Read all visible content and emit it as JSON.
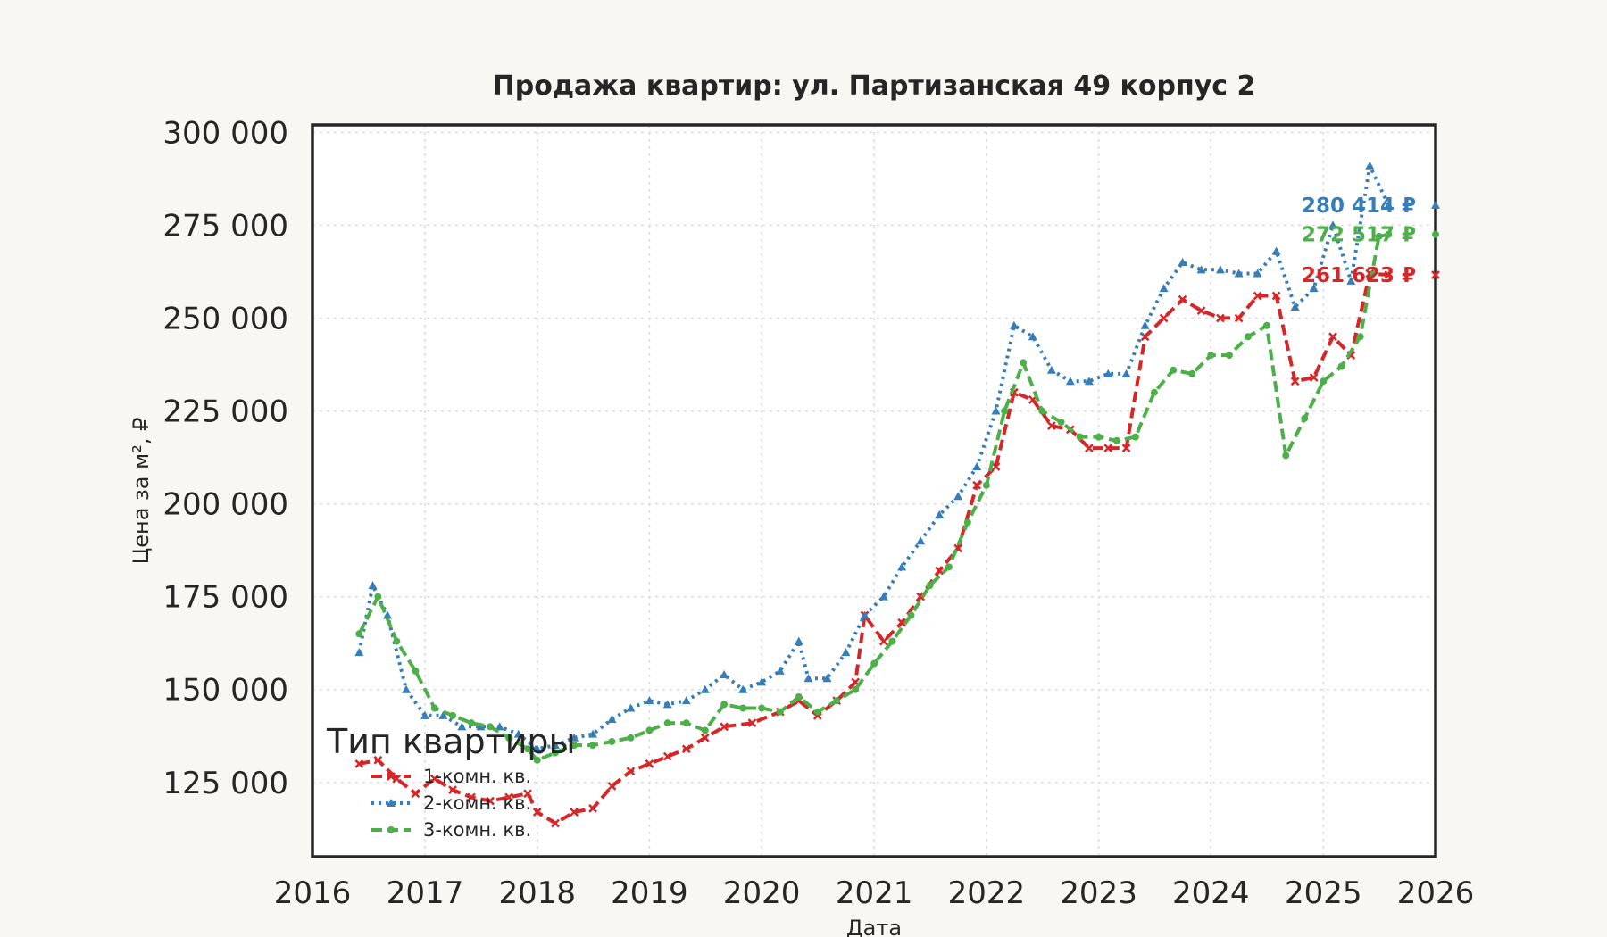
{
  "chart_data": {
    "type": "line",
    "title": "Продажа квартир: ул. Партизанская 49 корпус 2",
    "xlabel": "Дата",
    "ylabel": "Цена за м², ₽",
    "xlim": [
      "2016-01-01",
      "2026-01-01"
    ],
    "ylim": [
      105000,
      302000
    ],
    "x_ticks": [
      "2016",
      "2017",
      "2018",
      "2019",
      "2020",
      "2021",
      "2022",
      "2023",
      "2024",
      "2025",
      "2026"
    ],
    "y_ticks": [
      "125 000",
      "150 000",
      "175 000",
      "200 000",
      "225 000",
      "250 000",
      "275 000",
      "300 000"
    ],
    "y_tick_values": [
      125000,
      150000,
      175000,
      200000,
      225000,
      250000,
      275000,
      300000
    ],
    "grid": true,
    "legend": {
      "title": "Тип квартиры",
      "placement": "lower-left"
    },
    "series": [
      {
        "name": "1-комн. кв.",
        "color": "#d62728",
        "line_style": "dashed",
        "marker": "x",
        "end_label": "261 623 ₽",
        "end_value": 261623,
        "points": [
          [
            "2016-06-01",
            130000
          ],
          [
            "2016-08-01",
            131000
          ],
          [
            "2016-10-01",
            126000
          ],
          [
            "2016-12-01",
            122000
          ],
          [
            "2017-02-01",
            126000
          ],
          [
            "2017-04-01",
            123000
          ],
          [
            "2017-06-01",
            121000
          ],
          [
            "2017-08-01",
            120000
          ],
          [
            "2017-10-01",
            121000
          ],
          [
            "2017-12-01",
            122000
          ],
          [
            "2018-01-01",
            117000
          ],
          [
            "2018-03-01",
            114000
          ],
          [
            "2018-05-01",
            117000
          ],
          [
            "2018-07-01",
            118000
          ],
          [
            "2018-09-01",
            124000
          ],
          [
            "2018-11-01",
            128000
          ],
          [
            "2019-01-01",
            130000
          ],
          [
            "2019-03-01",
            132000
          ],
          [
            "2019-05-01",
            134000
          ],
          [
            "2019-07-01",
            137000
          ],
          [
            "2019-09-01",
            140000
          ],
          [
            "2019-12-01",
            141000
          ],
          [
            "2020-03-01",
            144000
          ],
          [
            "2020-05-01",
            147000
          ],
          [
            "2020-07-01",
            143000
          ],
          [
            "2020-09-01",
            147000
          ],
          [
            "2020-11-01",
            152000
          ],
          [
            "2020-12-01",
            170000
          ],
          [
            "2021-02-01",
            163000
          ],
          [
            "2021-04-01",
            168000
          ],
          [
            "2021-06-01",
            175000
          ],
          [
            "2021-08-01",
            182000
          ],
          [
            "2021-10-01",
            188000
          ],
          [
            "2021-12-01",
            205000
          ],
          [
            "2022-02-01",
            210000
          ],
          [
            "2022-04-01",
            230000
          ],
          [
            "2022-06-01",
            228000
          ],
          [
            "2022-08-01",
            221000
          ],
          [
            "2022-10-01",
            220000
          ],
          [
            "2022-12-01",
            215000
          ],
          [
            "2023-02-01",
            215000
          ],
          [
            "2023-04-01",
            215000
          ],
          [
            "2023-06-01",
            245000
          ],
          [
            "2023-08-01",
            250000
          ],
          [
            "2023-10-01",
            255000
          ],
          [
            "2023-12-01",
            252000
          ],
          [
            "2024-02-01",
            250000
          ],
          [
            "2024-04-01",
            250000
          ],
          [
            "2024-06-01",
            256000
          ],
          [
            "2024-08-01",
            256000
          ],
          [
            "2024-10-01",
            233000
          ],
          [
            "2024-12-01",
            234000
          ],
          [
            "2025-02-01",
            245000
          ],
          [
            "2025-04-01",
            240000
          ],
          [
            "2025-06-01",
            262000
          ],
          [
            "2025-08-01",
            261623
          ]
        ]
      },
      {
        "name": "2-комн. кв.",
        "color": "#377eb8",
        "line_style": "dotted",
        "marker": "triangle",
        "end_label": "280 414 ₽",
        "end_value": 280414,
        "points": [
          [
            "2016-06-01",
            160000
          ],
          [
            "2016-07-15",
            178000
          ],
          [
            "2016-09-01",
            170000
          ],
          [
            "2016-11-01",
            150000
          ],
          [
            "2017-01-01",
            143000
          ],
          [
            "2017-03-01",
            143000
          ],
          [
            "2017-05-01",
            140000
          ],
          [
            "2017-07-01",
            140000
          ],
          [
            "2017-09-01",
            140000
          ],
          [
            "2017-11-01",
            138000
          ],
          [
            "2018-01-01",
            134000
          ],
          [
            "2018-03-01",
            135000
          ],
          [
            "2018-05-01",
            137000
          ],
          [
            "2018-07-01",
            138000
          ],
          [
            "2018-09-01",
            142000
          ],
          [
            "2018-11-01",
            145000
          ],
          [
            "2019-01-01",
            147000
          ],
          [
            "2019-03-01",
            146000
          ],
          [
            "2019-05-01",
            147000
          ],
          [
            "2019-07-01",
            150000
          ],
          [
            "2019-09-01",
            154000
          ],
          [
            "2019-11-01",
            150000
          ],
          [
            "2020-01-01",
            152000
          ],
          [
            "2020-03-01",
            155000
          ],
          [
            "2020-05-01",
            163000
          ],
          [
            "2020-06-01",
            153000
          ],
          [
            "2020-08-01",
            153000
          ],
          [
            "2020-10-01",
            160000
          ],
          [
            "2020-12-01",
            170000
          ],
          [
            "2021-02-01",
            175000
          ],
          [
            "2021-04-01",
            183000
          ],
          [
            "2021-06-01",
            190000
          ],
          [
            "2021-08-01",
            197000
          ],
          [
            "2021-10-01",
            202000
          ],
          [
            "2021-12-01",
            210000
          ],
          [
            "2022-02-01",
            225000
          ],
          [
            "2022-04-01",
            248000
          ],
          [
            "2022-06-01",
            245000
          ],
          [
            "2022-08-01",
            236000
          ],
          [
            "2022-10-01",
            233000
          ],
          [
            "2022-12-01",
            233000
          ],
          [
            "2023-02-01",
            235000
          ],
          [
            "2023-04-01",
            235000
          ],
          [
            "2023-06-01",
            248000
          ],
          [
            "2023-08-01",
            258000
          ],
          [
            "2023-10-01",
            265000
          ],
          [
            "2023-12-01",
            263000
          ],
          [
            "2024-02-01",
            263000
          ],
          [
            "2024-04-01",
            262000
          ],
          [
            "2024-06-01",
            262000
          ],
          [
            "2024-08-01",
            268000
          ],
          [
            "2024-10-01",
            253000
          ],
          [
            "2024-12-01",
            258000
          ],
          [
            "2025-02-01",
            275000
          ],
          [
            "2025-04-01",
            260000
          ],
          [
            "2025-06-01",
            291000
          ],
          [
            "2025-08-01",
            280414
          ]
        ]
      },
      {
        "name": "3-комн. кв.",
        "color": "#4daf4a",
        "line_style": "dashed",
        "marker": "circle",
        "end_label": "272 517 ₽",
        "end_value": 272517,
        "points": [
          [
            "2016-06-01",
            165000
          ],
          [
            "2016-08-01",
            175000
          ],
          [
            "2016-10-01",
            163000
          ],
          [
            "2016-12-01",
            155000
          ],
          [
            "2017-02-01",
            145000
          ],
          [
            "2017-04-01",
            143000
          ],
          [
            "2017-06-01",
            141000
          ],
          [
            "2017-08-01",
            140000
          ],
          [
            "2017-10-01",
            137000
          ],
          [
            "2017-12-01",
            134000
          ],
          [
            "2018-01-01",
            131000
          ],
          [
            "2018-03-01",
            133000
          ],
          [
            "2018-05-01",
            135000
          ],
          [
            "2018-07-01",
            135000
          ],
          [
            "2018-09-01",
            136000
          ],
          [
            "2018-11-01",
            137000
          ],
          [
            "2019-01-01",
            139000
          ],
          [
            "2019-03-01",
            141000
          ],
          [
            "2019-05-01",
            141000
          ],
          [
            "2019-07-01",
            139000
          ],
          [
            "2019-09-01",
            146000
          ],
          [
            "2019-11-01",
            145000
          ],
          [
            "2020-01-01",
            145000
          ],
          [
            "2020-03-01",
            144000
          ],
          [
            "2020-05-01",
            148000
          ],
          [
            "2020-07-01",
            144000
          ],
          [
            "2020-09-01",
            147000
          ],
          [
            "2020-11-01",
            150000
          ],
          [
            "2021-01-01",
            157000
          ],
          [
            "2021-03-01",
            163000
          ],
          [
            "2021-05-01",
            170000
          ],
          [
            "2021-07-01",
            178000
          ],
          [
            "2021-09-01",
            183000
          ],
          [
            "2021-11-01",
            195000
          ],
          [
            "2022-01-01",
            205000
          ],
          [
            "2022-03-01",
            225000
          ],
          [
            "2022-05-01",
            238000
          ],
          [
            "2022-07-01",
            225000
          ],
          [
            "2022-09-01",
            222000
          ],
          [
            "2022-11-01",
            218000
          ],
          [
            "2023-01-01",
            218000
          ],
          [
            "2023-03-01",
            217000
          ],
          [
            "2023-05-01",
            218000
          ],
          [
            "2023-07-01",
            230000
          ],
          [
            "2023-09-01",
            236000
          ],
          [
            "2023-11-01",
            235000
          ],
          [
            "2024-01-01",
            240000
          ],
          [
            "2024-03-01",
            240000
          ],
          [
            "2024-05-01",
            245000
          ],
          [
            "2024-07-01",
            248000
          ],
          [
            "2024-09-01",
            213000
          ],
          [
            "2024-11-01",
            223000
          ],
          [
            "2025-01-01",
            233000
          ],
          [
            "2025-03-01",
            237000
          ],
          [
            "2025-05-01",
            245000
          ],
          [
            "2025-07-01",
            272000
          ],
          [
            "2025-08-01",
            272517
          ]
        ]
      }
    ]
  }
}
